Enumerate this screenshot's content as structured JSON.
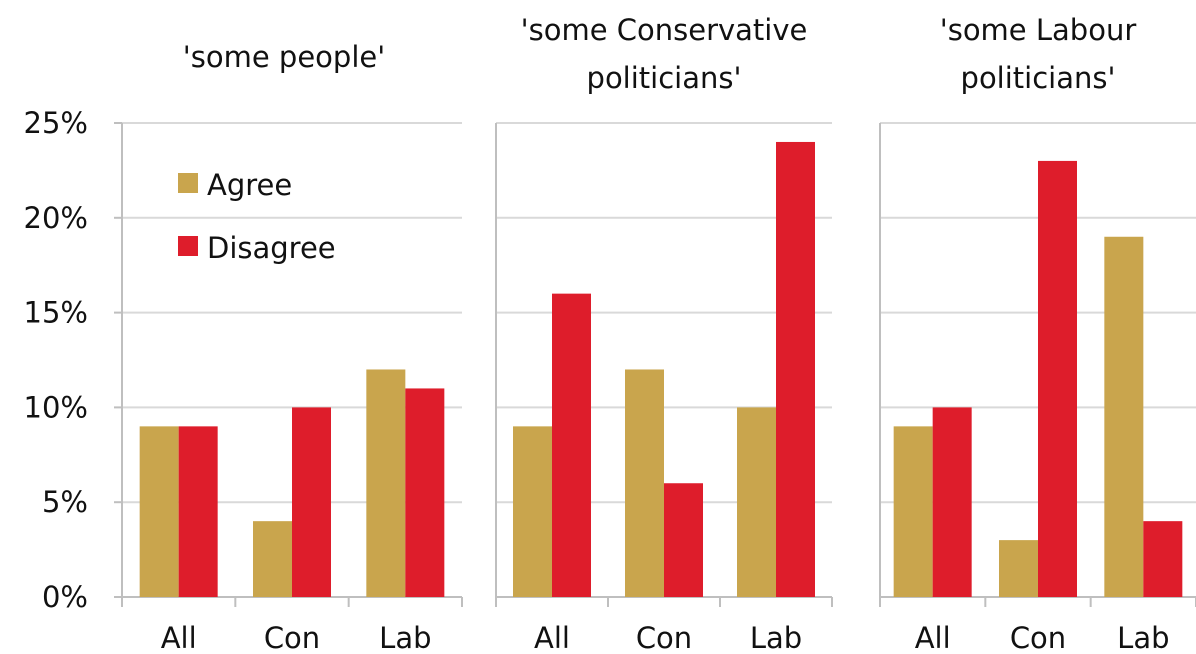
{
  "chart_data": [
    {
      "type": "bar",
      "title_lines": [
        "'some people'"
      ],
      "categories": [
        "All",
        "Con",
        "Lab"
      ],
      "series": [
        {
          "name": "Agree",
          "values": [
            9,
            4,
            12
          ]
        },
        {
          "name": "Disagree",
          "values": [
            9,
            10,
            11
          ]
        }
      ],
      "y_tick_labels": [
        "0%",
        "5%",
        "10%",
        "15%",
        "20%",
        "25%"
      ],
      "ylim": [
        0,
        25
      ],
      "yunit": "%",
      "grid": true,
      "legend": "top-left"
    },
    {
      "type": "bar",
      "title_lines": [
        "'some Conservative",
        "politicians'"
      ],
      "categories": [
        "All",
        "Con",
        "Lab"
      ],
      "series": [
        {
          "name": "Agree",
          "values": [
            9,
            12,
            10
          ]
        },
        {
          "name": "Disagree",
          "values": [
            16,
            6,
            24
          ]
        }
      ],
      "ylim": [
        0,
        25
      ],
      "yunit": "%",
      "grid": true
    },
    {
      "type": "bar",
      "title_lines": [
        "'some Labour",
        "politicians'"
      ],
      "categories": [
        "All",
        "Con",
        "Lab"
      ],
      "series": [
        {
          "name": "Agree",
          "values": [
            9,
            3,
            19
          ]
        },
        {
          "name": "Disagree",
          "values": [
            10,
            23,
            4
          ]
        }
      ],
      "ylim": [
        0,
        25
      ],
      "yunit": "%",
      "grid": true
    }
  ],
  "legend": {
    "items": [
      {
        "label": "Agree"
      },
      {
        "label": "Disagree"
      }
    ]
  },
  "colors": {
    "agree": "#C9A54D",
    "disagree": "#DE1D2B",
    "grid": "#D9D9D9",
    "axis": "#BFBFBF"
  }
}
